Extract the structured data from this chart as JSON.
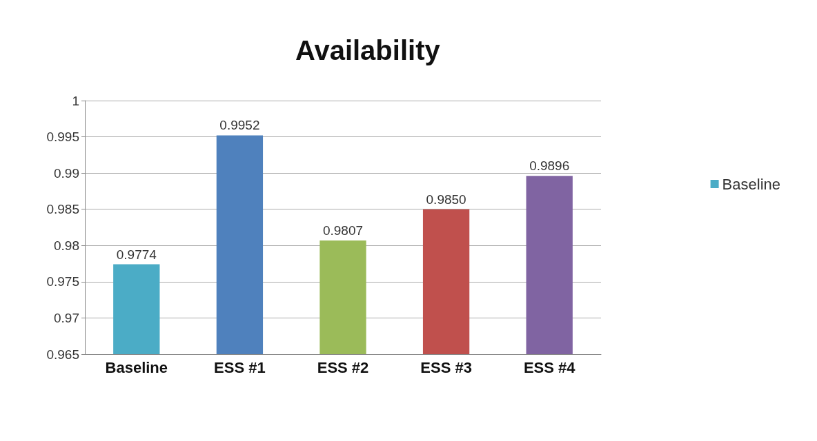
{
  "chart_data": {
    "type": "bar",
    "title": "Availability",
    "categories": [
      "Baseline",
      "ESS #1",
      "ESS #2",
      "ESS #3",
      "ESS #4"
    ],
    "series": [
      {
        "name": "Baseline",
        "color": "#4bacc6",
        "values": [
          0.9774,
          null,
          null,
          null,
          null
        ],
        "value_labels": [
          "0.9774",
          null,
          null,
          null,
          null
        ]
      },
      {
        "color": "#4f81bd",
        "values": [
          null,
          0.9952,
          null,
          null,
          null
        ],
        "value_labels": [
          null,
          "0.9952",
          null,
          null,
          null
        ]
      },
      {
        "color": "#9bbb59",
        "values": [
          null,
          null,
          0.9807,
          null,
          null
        ],
        "value_labels": [
          null,
          null,
          "0.9807",
          null,
          null
        ]
      },
      {
        "color": "#c0504d",
        "values": [
          null,
          null,
          null,
          0.985,
          null
        ],
        "value_labels": [
          null,
          null,
          null,
          "0.9850",
          null
        ]
      },
      {
        "color": "#8064a2",
        "values": [
          null,
          null,
          null,
          null,
          0.9896
        ],
        "value_labels": [
          null,
          null,
          null,
          null,
          "0.9896"
        ]
      }
    ],
    "ylim": [
      0.965,
      1
    ],
    "yticks": [
      0.965,
      0.97,
      0.975,
      0.98,
      0.985,
      0.99,
      0.995,
      1
    ],
    "grid": "y",
    "legend": "right"
  }
}
